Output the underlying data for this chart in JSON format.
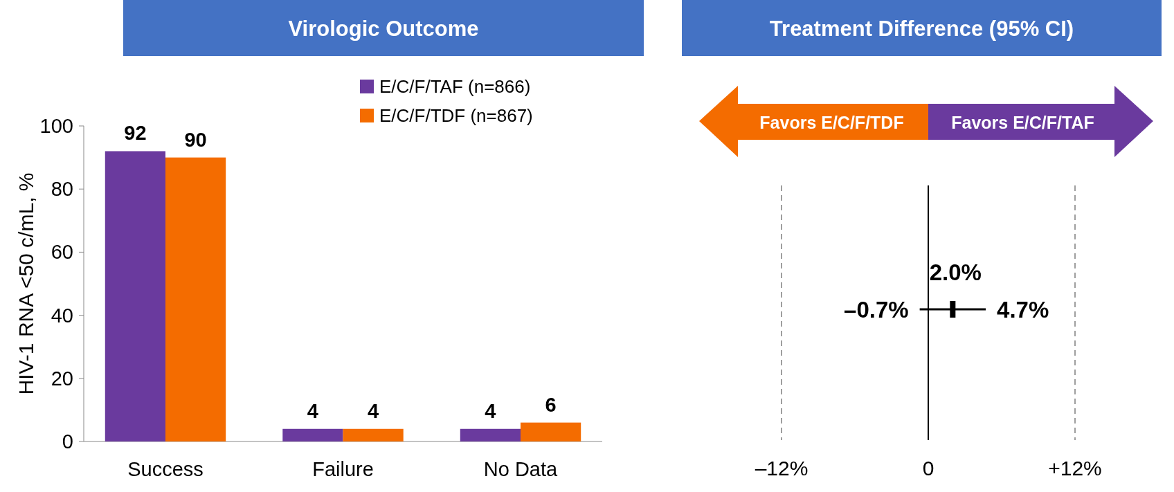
{
  "chart_data": [
    {
      "type": "bar",
      "title": "Virologic Outcome",
      "ylabel": "HIV-1 RNA <50 c/mL, %",
      "categories": [
        "Success",
        "Failure",
        "No Data"
      ],
      "series": [
        {
          "name": "E/C/F/TAF (n=866)",
          "color": "#6a3a9e",
          "values": [
            92,
            4,
            4
          ]
        },
        {
          "name": "E/C/F/TDF (n=867)",
          "color": "#f46c00",
          "values": [
            90,
            4,
            6
          ]
        }
      ],
      "ylim": [
        0,
        100
      ],
      "yticks": [
        0,
        20,
        40,
        60,
        80,
        100
      ],
      "data_labels": true,
      "legend": "top right"
    },
    {
      "type": "scatter",
      "orientation": "horizontal",
      "title": "Treatment Difference (95% CI)",
      "categories": [
        null
      ],
      "values": [
        2.0
      ],
      "errors": [
        [
          -0.7,
          4.7
        ]
      ],
      "value_labels": [
        "2.0%"
      ],
      "color": "#000000",
      "xlim": [
        -12,
        12
      ],
      "xticks": [
        {
          "value": -12,
          "label": "–12%"
        },
        {
          "value": 0,
          "label": "0"
        },
        {
          "value": 12,
          "label": "+12%"
        }
      ],
      "ref_lines": [
        {
          "axis": "x",
          "value": -12,
          "line_style": "dashed",
          "color": "#7f7f7f"
        },
        {
          "axis": "x",
          "value": 12,
          "line_style": "dashed",
          "color": "#7f7f7f"
        },
        {
          "axis": "x",
          "value": 0,
          "line_style": "solid",
          "color": "#000000"
        }
      ],
      "annotations": [
        {
          "text": "–0.7%",
          "x": -0.7
        },
        {
          "text": "4.7%",
          "x": 4.7
        },
        "Favors E/C/F/TDF",
        "Favors E/C/F/TAF"
      ]
    }
  ]
}
